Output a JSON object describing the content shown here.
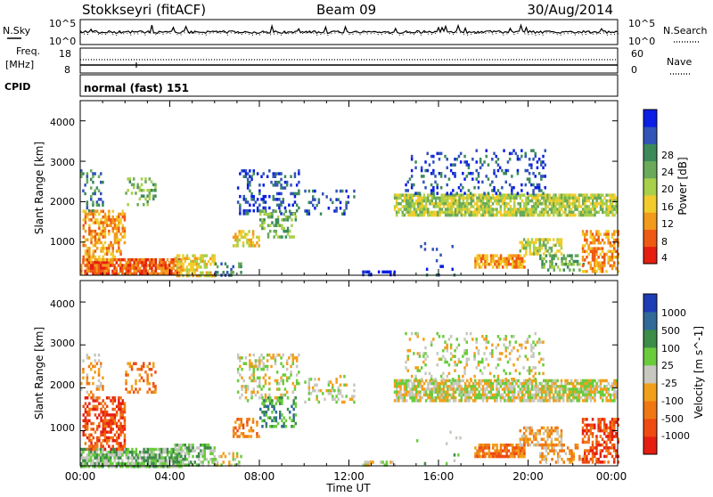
{
  "header": {
    "station": "Stokkseyri (fitACF)",
    "beam": "Beam 09",
    "date": "30/Aug/2014"
  },
  "noise_panel": {
    "left_label": "N.Sky",
    "left_ticks": [
      "10^5",
      "10^0"
    ],
    "right_label": "N.Search",
    "right_ticks": [
      "10^5",
      "10^0"
    ]
  },
  "freq_panel": {
    "left_label_1": "Freq.",
    "left_label_2": "[MHz]",
    "left_ticks": [
      "18",
      "8"
    ],
    "right_label": "Nave",
    "right_ticks": [
      "60",
      "0"
    ]
  },
  "cpid_panel": {
    "label": "CPID",
    "text": "normal (fast) 151"
  },
  "chart_data": [
    {
      "type": "heatmap",
      "title": "",
      "ylabel": "Slant Range [km]",
      "ylim": [
        180,
        4500
      ],
      "y_ticks": [
        "1000",
        "2000",
        "3000",
        "4000"
      ],
      "colorbar": {
        "label": "Power [dB]",
        "ticks": [
          "28",
          "24",
          "20",
          "16",
          "12",
          "8",
          "4"
        ],
        "colors": [
          "#0a1ee6",
          "#3254b8",
          "#3c8a5a",
          "#6aaa5a",
          "#a8d04a",
          "#f2cc2c",
          "#f29a1c",
          "#ee5a14",
          "#e61e10"
        ]
      }
    },
    {
      "type": "heatmap",
      "title": "",
      "ylabel": "Slant Range [km]",
      "xlabel": "Time UT",
      "ylim": [
        180,
        4500
      ],
      "y_ticks": [
        "1000",
        "2000",
        "3000",
        "4000"
      ],
      "x_ticks": [
        "00:00",
        "04:00",
        "08:00",
        "12:00",
        "16:00",
        "20:00",
        "00:00"
      ],
      "colorbar": {
        "label": "Velocity [m s^-1]",
        "ticks": [
          "1000",
          "500",
          "100",
          "25",
          "-25",
          "-100",
          "-500",
          "-1000"
        ],
        "colors": [
          "#1e3cb4",
          "#2f6a98",
          "#3c8c4a",
          "#6acc3c",
          "#c8c8c0",
          "#f2a01c",
          "#f07814",
          "#ee4a12",
          "#e61e10"
        ]
      }
    }
  ]
}
